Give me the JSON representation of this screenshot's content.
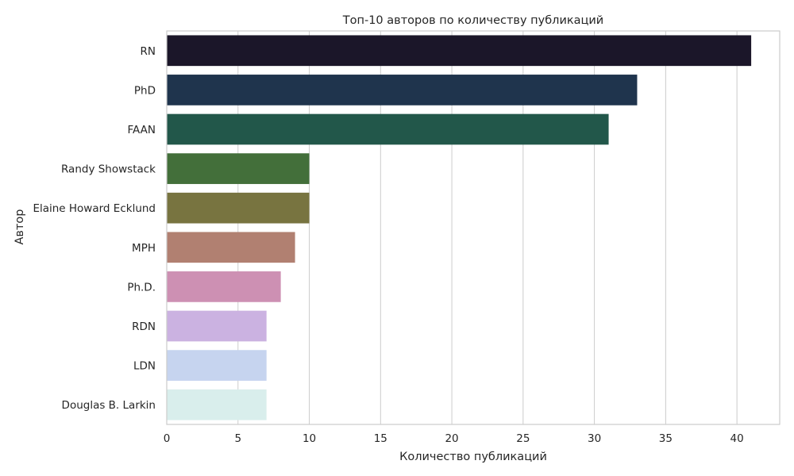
{
  "chart_data": {
    "type": "bar",
    "orientation": "horizontal",
    "title": "Топ-10 авторов по количеству публикаций",
    "xlabel": "Количество публикаций",
    "ylabel": "Автор",
    "categories": [
      "RN",
      "PhD",
      "FAAN",
      "Randy Showstack",
      "Elaine Howard Ecklund",
      "MPH",
      "Ph.D.",
      "RDN",
      "LDN",
      "Douglas B. Larkin"
    ],
    "values": [
      41,
      33,
      31,
      10,
      10,
      9,
      8,
      7,
      7,
      7
    ],
    "colors": [
      "#1b1629",
      "#1f344d",
      "#22574a",
      "#436f3a",
      "#787440",
      "#b18071",
      "#cd90b3",
      "#cbb2e1",
      "#c6d4ef",
      "#d9eeec"
    ],
    "xlim": [
      0,
      43
    ],
    "xticks": [
      0,
      5,
      10,
      15,
      20,
      25,
      30,
      35,
      40
    ],
    "grid": true
  }
}
